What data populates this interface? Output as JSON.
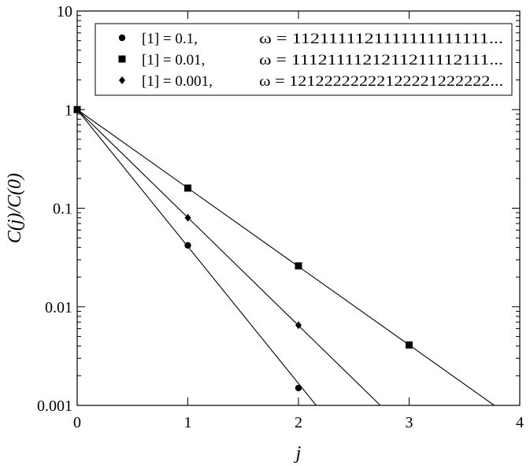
{
  "chart_data": {
    "type": "scatter",
    "title": "",
    "xlabel": "j",
    "ylabel": "C(j)/C(0)",
    "yscale": "log",
    "xlim": [
      0,
      4
    ],
    "ylim": [
      0.001,
      10
    ],
    "x_ticks": [
      {
        "value": 0,
        "label": "0"
      },
      {
        "value": 1,
        "label": "1"
      },
      {
        "value": 2,
        "label": "2"
      },
      {
        "value": 3,
        "label": "3"
      },
      {
        "value": 4,
        "label": "4"
      }
    ],
    "y_ticks": [
      {
        "value": 0.001,
        "label": "0.001"
      },
      {
        "value": 0.01,
        "label": "0.01"
      },
      {
        "value": 0.1,
        "label": "0.1"
      },
      {
        "value": 1,
        "label": "1"
      },
      {
        "value": 10,
        "label": "10"
      }
    ],
    "grid": false,
    "legend_position": "top",
    "series": [
      {
        "name": "[1] = 0.1,",
        "omega": "ω = 1121111121111111111111...",
        "marker": "circle",
        "points": [
          {
            "x": 0,
            "y": 1
          },
          {
            "x": 1,
            "y": 0.042
          },
          {
            "x": 2,
            "y": 0.0015
          }
        ],
        "fit_line": {
          "x": [
            0,
            2.16
          ],
          "y": [
            1,
            0.001
          ]
        }
      },
      {
        "name": "[1] = 0.01,",
        "omega": "ω = 1112111121211211112111...",
        "marker": "square",
        "points": [
          {
            "x": 0,
            "y": 1
          },
          {
            "x": 1,
            "y": 0.16
          },
          {
            "x": 2,
            "y": 0.026
          },
          {
            "x": 3,
            "y": 0.0041
          }
        ],
        "fit_line": {
          "x": [
            0,
            3.77
          ],
          "y": [
            1,
            0.001
          ]
        }
      },
      {
        "name": "[1] = 0.001,",
        "omega": "ω = 12122222222122221222222...",
        "marker": "diamond",
        "points": [
          {
            "x": 0,
            "y": 1
          },
          {
            "x": 1,
            "y": 0.08
          },
          {
            "x": 2,
            "y": 0.0065
          }
        ],
        "fit_line": {
          "x": [
            0,
            2.74
          ],
          "y": [
            1,
            0.001
          ]
        }
      }
    ]
  }
}
